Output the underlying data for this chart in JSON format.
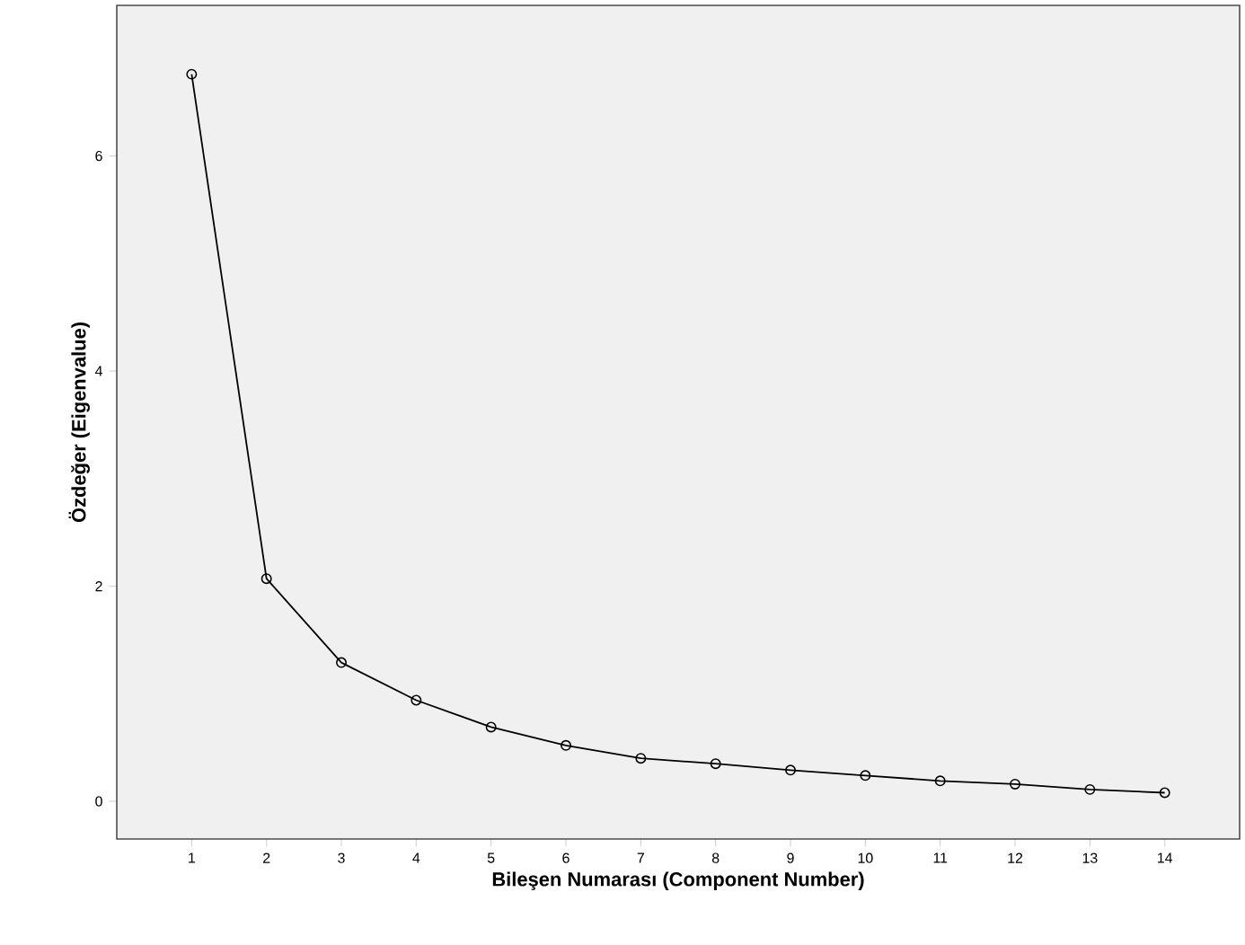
{
  "chart_data": {
    "type": "line",
    "xlabel": "Bileşen Numarası (Component Number)",
    "ylabel": "Özdeğer (Eigenvalue)",
    "x": [
      1,
      2,
      3,
      4,
      5,
      6,
      7,
      8,
      9,
      10,
      11,
      12,
      13,
      14
    ],
    "series": [
      {
        "color": "#000000",
        "values": [
          6.76,
          2.07,
          1.29,
          0.94,
          0.69,
          0.52,
          0.4,
          0.35,
          0.29,
          0.24,
          0.19,
          0.16,
          0.11,
          0.08
        ]
      }
    ],
    "xlim": [
      0,
      15
    ],
    "ylim": [
      -0.35,
      7.4
    ],
    "xticks": [
      1,
      2,
      3,
      4,
      5,
      6,
      7,
      8,
      9,
      10,
      11,
      12,
      13,
      14
    ],
    "yticks": [
      0,
      2,
      4,
      6
    ],
    "marker": "circle",
    "line_style": "solid"
  }
}
